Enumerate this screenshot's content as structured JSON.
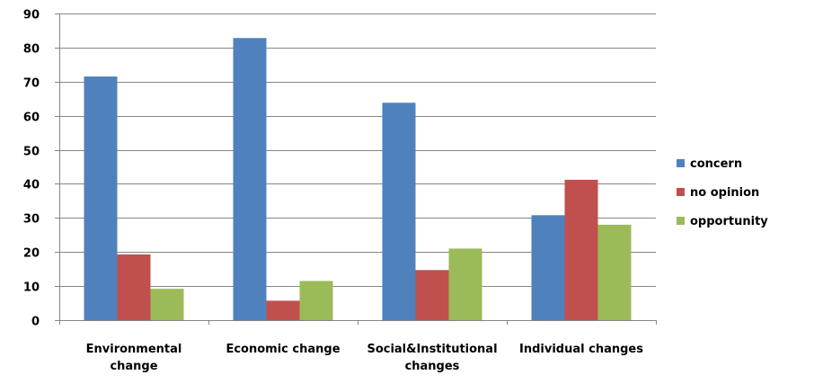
{
  "chart_data": {
    "type": "bar",
    "categories": [
      [
        "Environmental",
        "change"
      ],
      [
        "Economic change"
      ],
      [
        "Social&Institutional",
        "changes"
      ],
      [
        "Individual changes"
      ]
    ],
    "series": [
      {
        "name": "concern",
        "color": "#4F81BD",
        "values": [
          71.5,
          82.8,
          63.8,
          30.8
        ]
      },
      {
        "name": "no opinion",
        "color": "#C0504D",
        "values": [
          19.3,
          5.7,
          14.7,
          41.2
        ]
      },
      {
        "name": "opportunity",
        "color": "#9BBB59",
        "values": [
          9.2,
          11.5,
          21.0,
          28.0
        ]
      }
    ],
    "ylim": [
      0,
      90
    ],
    "yticks": [
      0,
      10,
      20,
      30,
      40,
      50,
      60,
      70,
      80,
      90
    ],
    "grid": true,
    "legend_position": "right"
  }
}
